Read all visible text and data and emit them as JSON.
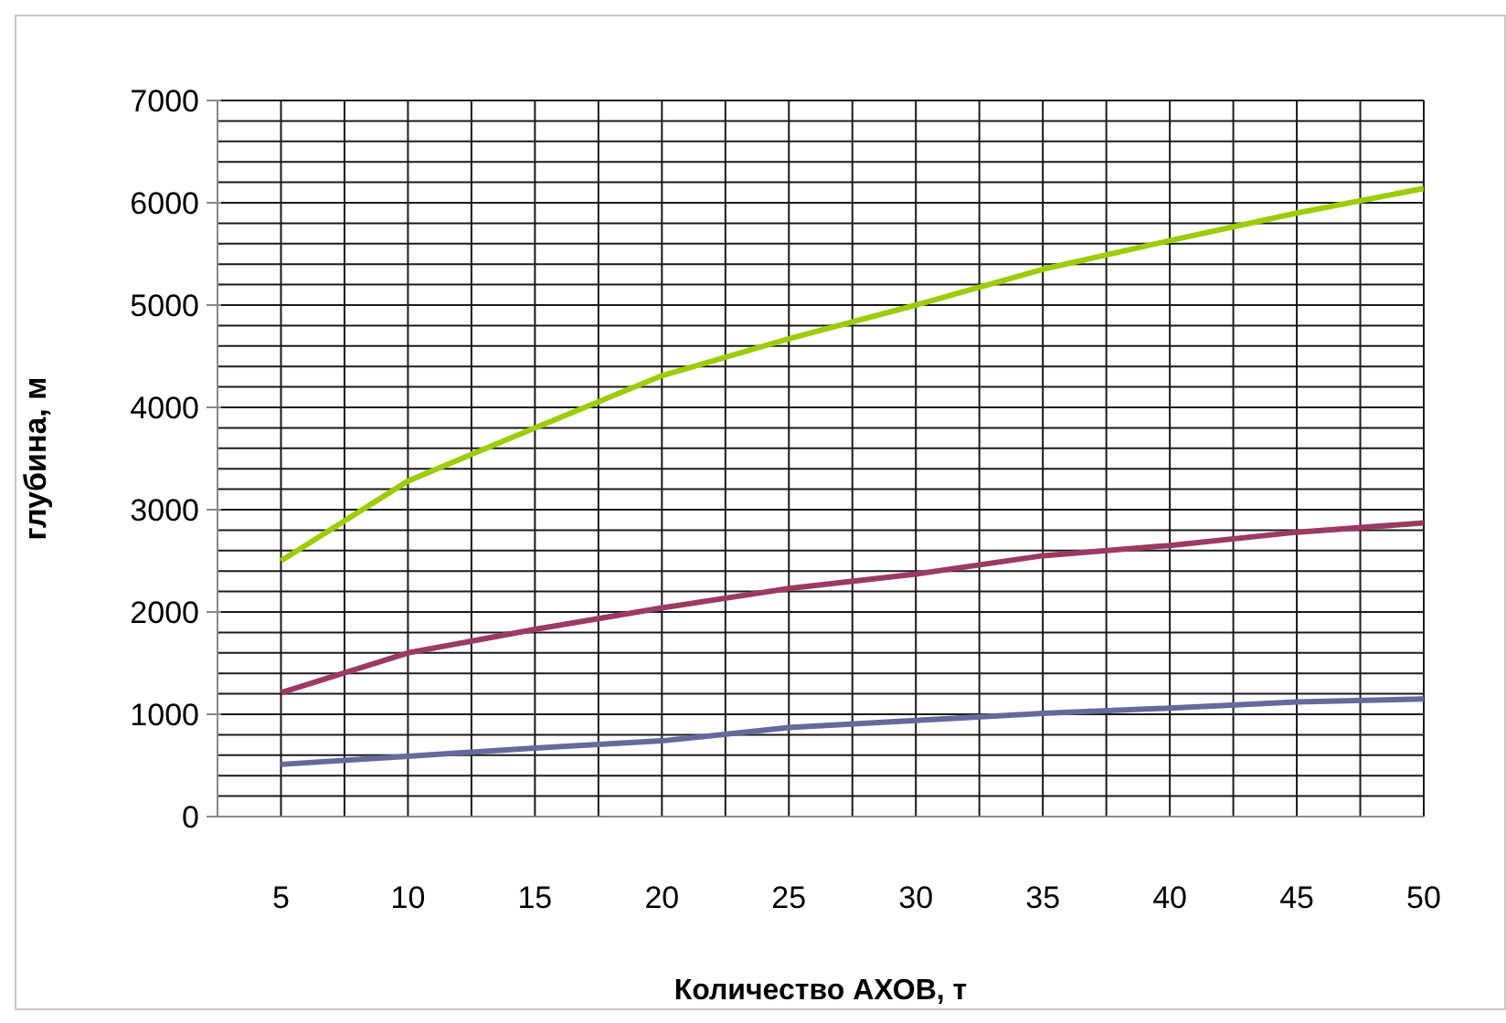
{
  "chart_data": {
    "type": "line",
    "xlabel": "Количество АХОВ, т",
    "ylabel": "глубина, м",
    "x": [
      5,
      10,
      15,
      20,
      25,
      30,
      35,
      40,
      45,
      50
    ],
    "series": [
      {
        "color": "#9bcd00",
        "values": [
          2500,
          3280,
          3800,
          4310,
          4670,
          5000,
          5350,
          5630,
          5900,
          6140
        ]
      },
      {
        "color": "#9b3a63",
        "values": [
          1210,
          1600,
          1830,
          2040,
          2230,
          2370,
          2550,
          2650,
          2780,
          2870
        ]
      },
      {
        "color": "#65699b",
        "values": [
          510,
          590,
          670,
          740,
          870,
          940,
          1010,
          1060,
          1120,
          1150
        ]
      }
    ],
    "xlim": [
      2.5,
      50
    ],
    "xticks": [
      {
        "value": 2.5,
        "label": null
      },
      5,
      {
        "value": 7.5,
        "label": null
      },
      10,
      {
        "value": 12.5,
        "label": null
      },
      15,
      {
        "value": 17.5,
        "label": null
      },
      20,
      {
        "value": 22.5,
        "label": null
      },
      25,
      {
        "value": 27.5,
        "label": null
      },
      30,
      {
        "value": 32.5,
        "label": null
      },
      35,
      {
        "value": 37.5,
        "label": null
      },
      40,
      {
        "value": 42.5,
        "label": null
      },
      45,
      {
        "value": 47.5,
        "label": null
      },
      50
    ],
    "ylim": [
      0,
      7000
    ],
    "yticks": [
      0,
      {
        "value": 200,
        "label": null
      },
      {
        "value": 400,
        "label": null
      },
      {
        "value": 600,
        "label": null
      },
      {
        "value": 800,
        "label": null
      },
      1000,
      {
        "value": 1200,
        "label": null
      },
      {
        "value": 1400,
        "label": null
      },
      {
        "value": 1600,
        "label": null
      },
      {
        "value": 1800,
        "label": null
      },
      2000,
      {
        "value": 2200,
        "label": null
      },
      {
        "value": 2400,
        "label": null
      },
      {
        "value": 2600,
        "label": null
      },
      {
        "value": 2800,
        "label": null
      },
      3000,
      {
        "value": 3200,
        "label": null
      },
      {
        "value": 3400,
        "label": null
      },
      {
        "value": 3600,
        "label": null
      },
      {
        "value": 3800,
        "label": null
      },
      4000,
      {
        "value": 4200,
        "label": null
      },
      {
        "value": 4400,
        "label": null
      },
      {
        "value": 4600,
        "label": null
      },
      {
        "value": 4800,
        "label": null
      },
      5000,
      {
        "value": 5200,
        "label": null
      },
      {
        "value": 5400,
        "label": null
      },
      {
        "value": 5600,
        "label": null
      },
      {
        "value": 5800,
        "label": null
      },
      6000,
      {
        "value": 6200,
        "label": null
      },
      {
        "value": 6400,
        "label": null
      },
      {
        "value": 6600,
        "label": null
      },
      {
        "value": 6800,
        "label": null
      },
      7000
    ],
    "grid": true,
    "marker": "none",
    "line_style": "solid",
    "legend": false
  }
}
